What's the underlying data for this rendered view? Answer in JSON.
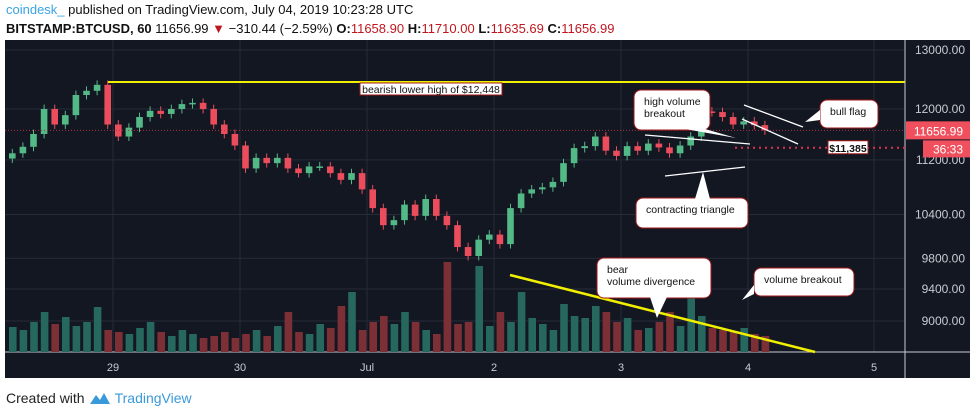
{
  "header": {
    "author": "coindesk_",
    "published": "published on TradingView.com, July 04, 2019 10:23:28 UTC",
    "symbol": "BITSTAMP:BTCUSD, 60",
    "last": "11656.99",
    "change": "−310.44 (−2.59%)",
    "o_label": "O:",
    "o": "11658.90",
    "h_label": "H:",
    "h": "11710.00",
    "l_label": "L:",
    "l": "11635.69",
    "c_label": "C:",
    "c": "11656.99"
  },
  "footer": {
    "text": "Created with",
    "brand": "TradingView"
  },
  "colors": {
    "bg": "#131722",
    "up": "#53b987",
    "down": "#eb4d5c",
    "vol_up": "#26675e",
    "vol_down": "#7c3036",
    "accent": "#f0f000"
  },
  "chart_data": {
    "type": "candlestick",
    "scale": "log",
    "grid": true,
    "ylim": [
      8700,
      13300
    ],
    "yticks": [
      13000,
      12000,
      11200,
      10400,
      9800,
      9400,
      9000
    ],
    "ytick_labels": [
      "13000.00",
      "12000.00",
      "11200.00",
      "10400.00",
      "9800.00",
      "9400.00",
      "9000.00"
    ],
    "xticks": [
      "29",
      "30",
      "Jul",
      "2",
      "3",
      "4",
      "5"
    ],
    "last_price": "11656.99",
    "countdown": "36:33",
    "closes": [
      11300,
      11400,
      11600,
      12000,
      11750,
      11900,
      12230,
      12300,
      12400,
      11750,
      11560,
      11700,
      11870,
      11970,
      11920,
      12000,
      12080,
      12100,
      12000,
      11750,
      11600,
      11420,
      11070,
      11230,
      11150,
      11230,
      11070,
      11000,
      11100,
      11100,
      11000,
      10900,
      11000,
      10760,
      10490,
      10250,
      10320,
      10540,
      10380,
      10620,
      10380,
      10250,
      9950,
      9830,
      10050,
      10120,
      9990,
      10490,
      10700,
      10760,
      10790,
      10870,
      11150,
      11380,
      11410,
      11560,
      11340,
      11260,
      11410,
      11340,
      11450,
      11390,
      11300,
      11420,
      11560,
      11960,
      11950,
      11870,
      11750,
      11800,
      11740,
      11656.99
    ],
    "volumes": [
      25,
      22,
      30,
      40,
      28,
      35,
      26,
      30,
      45,
      22,
      20,
      18,
      24,
      30,
      20,
      16,
      22,
      18,
      14,
      16,
      20,
      14,
      18,
      22,
      16,
      26,
      40,
      20,
      18,
      28,
      24,
      46,
      60,
      22,
      30,
      36,
      28,
      40,
      30,
      22,
      18,
      90,
      28,
      30,
      86,
      26,
      40,
      30,
      60,
      34,
      28,
      22,
      48,
      36,
      34,
      46,
      40,
      30,
      34,
      22,
      24,
      30,
      40,
      26,
      60,
      36,
      24,
      22,
      20,
      24,
      18,
      16
    ],
    "annotations": {
      "resistance": "bearish lower high of $12,448",
      "resistance_value": 12448,
      "support_label": "$11,385",
      "support_value": 11385,
      "callout_breakout": [
        "high volume",
        "breakout"
      ],
      "callout_flag": "bull flag",
      "callout_triangle": "contracting triangle",
      "callout_divergence": [
        "bear",
        "volume divergence"
      ],
      "callout_volume": "volume breakout"
    }
  }
}
